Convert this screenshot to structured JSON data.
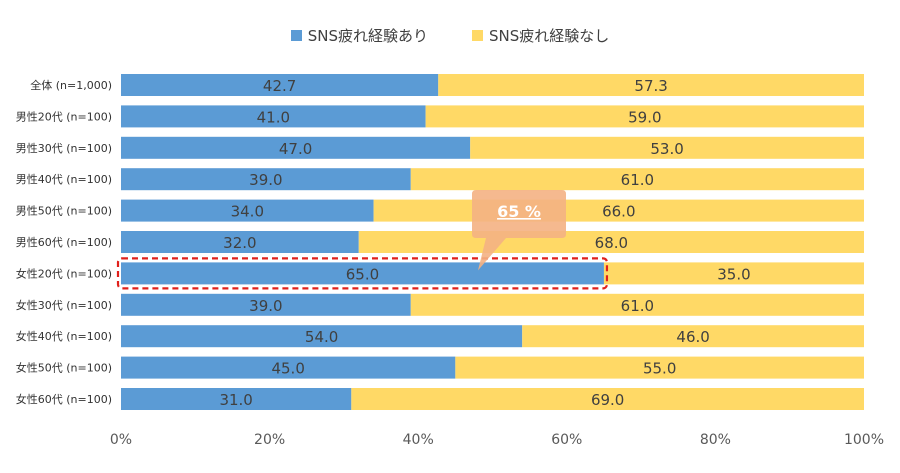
{
  "legend": {
    "series1": "SNS疲れ経験あり",
    "series2": "SNS疲れ経験なし"
  },
  "callout": {
    "text": "65 %",
    "color": "#F4B183",
    "highlight_color": "#E0201B",
    "highlight_category": "女性20代 (n=100)"
  },
  "chart_data": {
    "type": "bar",
    "orientation": "horizontal",
    "stacked": true,
    "categories": [
      "全体 (n=1,000)",
      "男性20代 (n=100)",
      "男性30代 (n=100)",
      "男性40代 (n=100)",
      "男性50代 (n=100)",
      "男性60代 (n=100)",
      "女性20代 (n=100)",
      "女性30代 (n=100)",
      "女性40代 (n=100)",
      "女性50代 (n=100)",
      "女性60代 (n=100)"
    ],
    "series": [
      {
        "name": "SNS疲れ経験あり",
        "color": "#5B9BD5",
        "values": [
          42.7,
          41.0,
          47.0,
          39.0,
          34.0,
          32.0,
          65.0,
          39.0,
          54.0,
          45.0,
          31.0
        ],
        "labels": [
          "42.7",
          "41.0",
          "47.0",
          "39.0",
          "34.0",
          "32.0",
          "65.0",
          "39.0",
          "54.0",
          "45.0",
          "31.0"
        ]
      },
      {
        "name": "SNS疲れ経験なし",
        "color": "#FFD966",
        "values": [
          57.3,
          59.0,
          53.0,
          61.0,
          66.0,
          68.0,
          35.0,
          61.0,
          46.0,
          55.0,
          69.0
        ],
        "labels": [
          "57.3",
          "59.0",
          "53.0",
          "61.0",
          "66.0",
          "68.0",
          "35.0",
          "61.0",
          "46.0",
          "55.0",
          "69.0"
        ]
      }
    ],
    "xlim": [
      0,
      100
    ],
    "ticks": [
      "0%",
      "20%",
      "40%",
      "60%",
      "80%",
      "100%"
    ],
    "tick_values": [
      0,
      20,
      40,
      60,
      80,
      100
    ],
    "grid": false,
    "legend_position": "top-center"
  }
}
